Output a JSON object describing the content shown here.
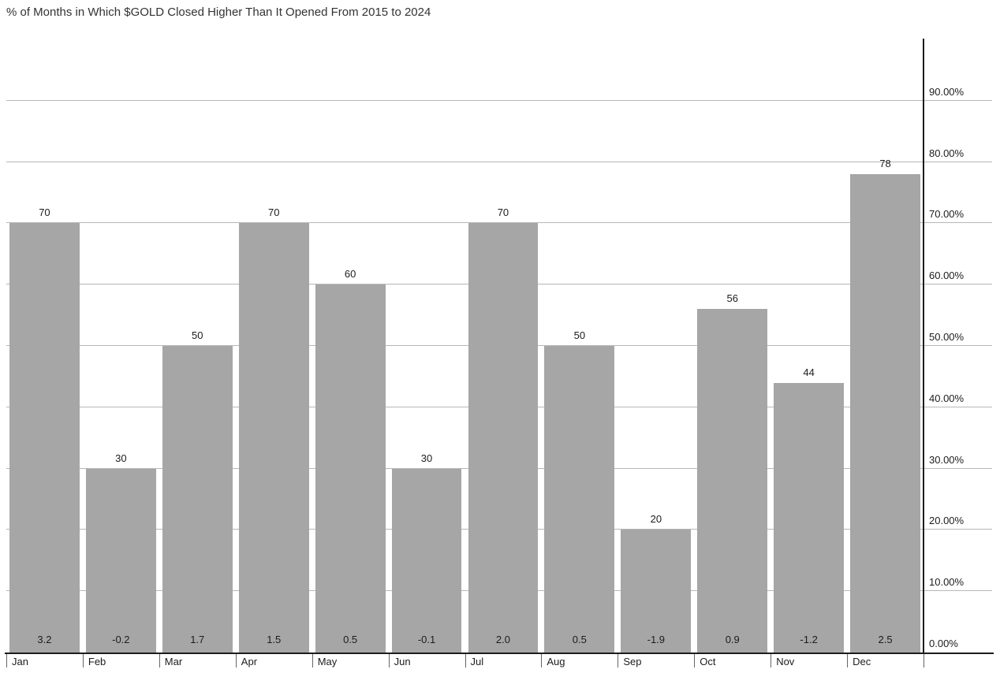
{
  "chart_data": {
    "type": "bar",
    "title": "% of Months in Which $GOLD Closed Higher Than It Opened From 2015 to 2024",
    "categories": [
      "Jan",
      "Feb",
      "Mar",
      "Apr",
      "May",
      "Jun",
      "Jul",
      "Aug",
      "Sep",
      "Oct",
      "Nov",
      "Dec"
    ],
    "series": [
      {
        "name": "pct-of-months-closed-higher",
        "values": [
          70,
          30,
          50,
          70,
          60,
          30,
          70,
          50,
          20,
          56,
          44,
          78
        ]
      },
      {
        "name": "avg-change-labels",
        "values": [
          "3.2",
          "-0.2",
          "1.7",
          "1.5",
          "0.5",
          "-0.1",
          "2.0",
          "0.5",
          "-1.9",
          "0.9",
          "-1.2",
          "2.5"
        ]
      }
    ],
    "y_ticks": [
      "0.00%",
      "10.00%",
      "20.00%",
      "30.00%",
      "40.00%",
      "50.00%",
      "60.00%",
      "70.00%",
      "80.00%",
      "90.00%"
    ],
    "ylim": [
      0,
      100
    ],
    "yaxis_side": "right",
    "grid": true,
    "legend": "none",
    "colors": {
      "bar": "#a6a6a6",
      "gridline": "#b7b7b7",
      "axis": "#1c1c1c",
      "tick": "#666666",
      "text": "#1c1c1c",
      "title": "#333333"
    }
  }
}
